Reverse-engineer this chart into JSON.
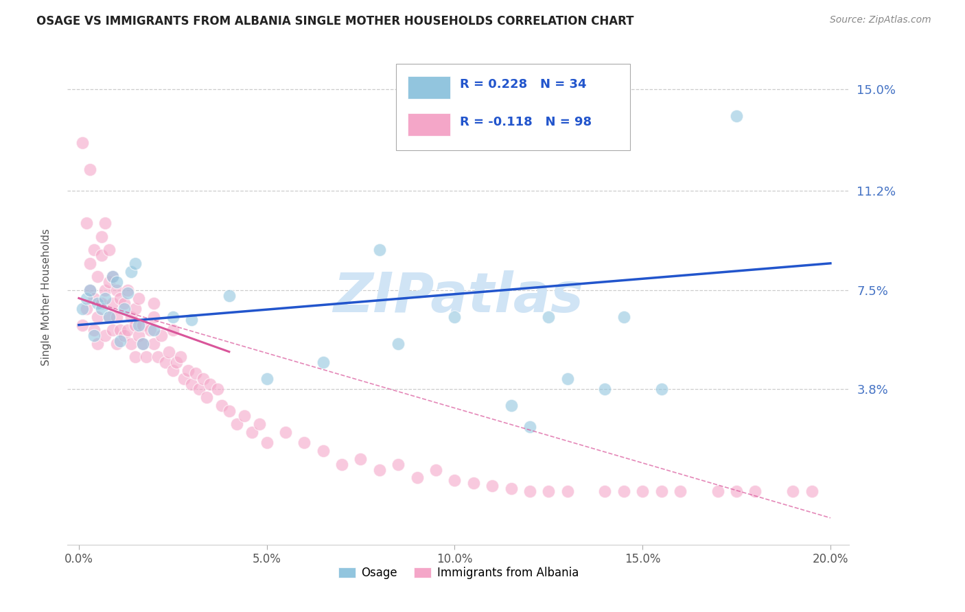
{
  "title": "OSAGE VS IMMIGRANTS FROM ALBANIA SINGLE MOTHER HOUSEHOLDS CORRELATION CHART",
  "source": "Source: ZipAtlas.com",
  "ylabel": "Single Mother Households",
  "xlabel_ticks": [
    "0.0%",
    "5.0%",
    "10.0%",
    "15.0%",
    "20.0%"
  ],
  "xlabel_vals": [
    0.0,
    0.05,
    0.1,
    0.15,
    0.2
  ],
  "ylabel_ticks": [
    "3.8%",
    "7.5%",
    "11.2%",
    "15.0%"
  ],
  "ylabel_vals": [
    0.038,
    0.075,
    0.112,
    0.15
  ],
  "ylim": [
    -0.02,
    0.165
  ],
  "xlim": [
    -0.003,
    0.205
  ],
  "osage_R": 0.228,
  "osage_N": 34,
  "albania_R": -0.118,
  "albania_N": 98,
  "osage_color": "#92c5de",
  "albania_color": "#f4a6c8",
  "osage_line_color": "#2255cc",
  "albania_line_color": "#d9559a",
  "watermark": "ZIPatlas",
  "watermark_color": "#d0e4f5",
  "osage_x": [
    0.001,
    0.002,
    0.003,
    0.004,
    0.005,
    0.006,
    0.007,
    0.008,
    0.009,
    0.01,
    0.011,
    0.012,
    0.013,
    0.014,
    0.015,
    0.016,
    0.017,
    0.02,
    0.025,
    0.03,
    0.04,
    0.05,
    0.065,
    0.08,
    0.085,
    0.1,
    0.115,
    0.12,
    0.125,
    0.13,
    0.14,
    0.145,
    0.155,
    0.175
  ],
  "osage_y": [
    0.068,
    0.072,
    0.075,
    0.058,
    0.07,
    0.068,
    0.072,
    0.065,
    0.08,
    0.078,
    0.056,
    0.068,
    0.074,
    0.082,
    0.085,
    0.062,
    0.055,
    0.06,
    0.065,
    0.064,
    0.073,
    0.042,
    0.048,
    0.09,
    0.055,
    0.065,
    0.032,
    0.024,
    0.065,
    0.042,
    0.038,
    0.065,
    0.038,
    0.14
  ],
  "albania_x": [
    0.001,
    0.001,
    0.002,
    0.002,
    0.003,
    0.003,
    0.003,
    0.004,
    0.004,
    0.004,
    0.005,
    0.005,
    0.005,
    0.006,
    0.006,
    0.006,
    0.007,
    0.007,
    0.007,
    0.008,
    0.008,
    0.008,
    0.009,
    0.009,
    0.009,
    0.01,
    0.01,
    0.01,
    0.011,
    0.011,
    0.012,
    0.012,
    0.013,
    0.013,
    0.014,
    0.014,
    0.015,
    0.015,
    0.015,
    0.016,
    0.016,
    0.017,
    0.017,
    0.018,
    0.019,
    0.02,
    0.02,
    0.02,
    0.021,
    0.022,
    0.023,
    0.024,
    0.025,
    0.025,
    0.026,
    0.027,
    0.028,
    0.029,
    0.03,
    0.031,
    0.032,
    0.033,
    0.034,
    0.035,
    0.037,
    0.038,
    0.04,
    0.042,
    0.044,
    0.046,
    0.048,
    0.05,
    0.055,
    0.06,
    0.065,
    0.07,
    0.075,
    0.08,
    0.085,
    0.09,
    0.095,
    0.1,
    0.105,
    0.11,
    0.115,
    0.12,
    0.125,
    0.13,
    0.14,
    0.145,
    0.15,
    0.155,
    0.16,
    0.17,
    0.175,
    0.18,
    0.19,
    0.195
  ],
  "albania_y": [
    0.062,
    0.13,
    0.068,
    0.1,
    0.075,
    0.085,
    0.12,
    0.06,
    0.072,
    0.09,
    0.065,
    0.055,
    0.08,
    0.07,
    0.088,
    0.095,
    0.058,
    0.075,
    0.1,
    0.065,
    0.078,
    0.09,
    0.06,
    0.07,
    0.08,
    0.055,
    0.065,
    0.075,
    0.06,
    0.072,
    0.058,
    0.07,
    0.06,
    0.075,
    0.065,
    0.055,
    0.05,
    0.062,
    0.068,
    0.058,
    0.072,
    0.055,
    0.062,
    0.05,
    0.06,
    0.055,
    0.065,
    0.07,
    0.05,
    0.058,
    0.048,
    0.052,
    0.045,
    0.06,
    0.048,
    0.05,
    0.042,
    0.045,
    0.04,
    0.044,
    0.038,
    0.042,
    0.035,
    0.04,
    0.038,
    0.032,
    0.03,
    0.025,
    0.028,
    0.022,
    0.025,
    0.018,
    0.022,
    0.018,
    0.015,
    0.01,
    0.012,
    0.008,
    0.01,
    0.005,
    0.008,
    0.004,
    0.003,
    0.002,
    0.001,
    0.0,
    0.0,
    0.0,
    0.0,
    0.0,
    0.0,
    0.0,
    0.0,
    0.0,
    0.0,
    0.0,
    0.0,
    0.0
  ]
}
